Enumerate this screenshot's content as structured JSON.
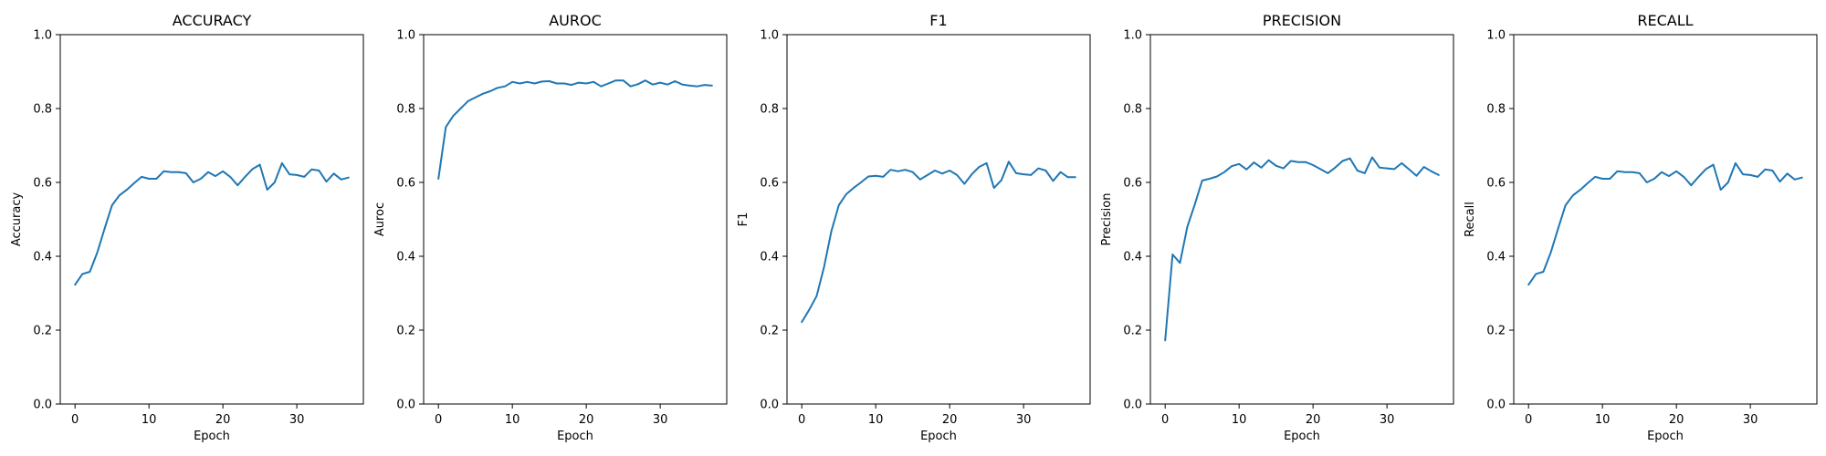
{
  "chart_data": [
    {
      "type": "line",
      "title": "ACCURACY",
      "xlabel": "Epoch",
      "ylabel": "Accuracy",
      "xlim": [
        -2,
        39
      ],
      "ylim": [
        0,
        1
      ],
      "xticks": [
        0,
        10,
        20,
        30
      ],
      "yticks": [
        0.0,
        0.2,
        0.4,
        0.6,
        0.8,
        1.0
      ],
      "x": [
        0,
        1,
        2,
        3,
        4,
        5,
        6,
        7,
        8,
        9,
        10,
        11,
        12,
        13,
        14,
        15,
        16,
        17,
        18,
        19,
        20,
        21,
        22,
        23,
        24,
        25,
        26,
        27,
        28,
        29,
        30,
        31,
        32,
        33,
        34,
        35,
        36,
        37
      ],
      "series": [
        {
          "values": [
            0.323,
            0.352,
            0.358,
            0.41,
            0.475,
            0.538,
            0.565,
            0.58,
            0.598,
            0.615,
            0.61,
            0.61,
            0.63,
            0.628,
            0.628,
            0.625,
            0.6,
            0.61,
            0.628,
            0.617,
            0.63,
            0.615,
            0.592,
            0.615,
            0.636,
            0.648,
            0.58,
            0.6,
            0.652,
            0.622,
            0.62,
            0.615,
            0.635,
            0.632,
            0.602,
            0.624,
            0.608,
            0.613
          ]
        }
      ],
      "color": "#1f77b4",
      "grid": false
    },
    {
      "type": "line",
      "title": "AUROC",
      "xlabel": "Epoch",
      "ylabel": "Auroc",
      "xlim": [
        -2,
        39
      ],
      "ylim": [
        0,
        1
      ],
      "xticks": [
        0,
        10,
        20,
        30
      ],
      "yticks": [
        0.0,
        0.2,
        0.4,
        0.6,
        0.8,
        1.0
      ],
      "x": [
        0,
        1,
        2,
        3,
        4,
        5,
        6,
        7,
        8,
        9,
        10,
        11,
        12,
        13,
        14,
        15,
        16,
        17,
        18,
        19,
        20,
        21,
        22,
        23,
        24,
        25,
        26,
        27,
        28,
        29,
        30,
        31,
        32,
        33,
        34,
        35,
        36,
        37
      ],
      "series": [
        {
          "values": [
            0.61,
            0.75,
            0.78,
            0.8,
            0.82,
            0.83,
            0.84,
            0.847,
            0.856,
            0.86,
            0.872,
            0.868,
            0.872,
            0.868,
            0.873,
            0.874,
            0.868,
            0.868,
            0.864,
            0.87,
            0.868,
            0.872,
            0.86,
            0.868,
            0.876,
            0.876,
            0.86,
            0.866,
            0.876,
            0.865,
            0.87,
            0.865,
            0.874,
            0.865,
            0.862,
            0.86,
            0.864,
            0.862
          ]
        }
      ],
      "color": "#1f77b4",
      "grid": false
    },
    {
      "type": "line",
      "title": "F1",
      "xlabel": "Epoch",
      "ylabel": "F1",
      "xlim": [
        -2,
        39
      ],
      "ylim": [
        0,
        1
      ],
      "xticks": [
        0,
        10,
        20,
        30
      ],
      "yticks": [
        0.0,
        0.2,
        0.4,
        0.6,
        0.8,
        1.0
      ],
      "x": [
        0,
        1,
        2,
        3,
        4,
        5,
        6,
        7,
        8,
        9,
        10,
        11,
        12,
        13,
        14,
        15,
        16,
        17,
        18,
        19,
        20,
        21,
        22,
        23,
        24,
        25,
        26,
        27,
        28,
        29,
        30,
        31,
        32,
        33,
        34,
        35,
        36,
        37
      ],
      "series": [
        {
          "values": [
            0.222,
            0.255,
            0.292,
            0.37,
            0.468,
            0.538,
            0.568,
            0.585,
            0.6,
            0.616,
            0.618,
            0.615,
            0.634,
            0.63,
            0.634,
            0.628,
            0.608,
            0.62,
            0.632,
            0.624,
            0.632,
            0.62,
            0.596,
            0.622,
            0.642,
            0.652,
            0.585,
            0.606,
            0.656,
            0.625,
            0.622,
            0.62,
            0.638,
            0.632,
            0.604,
            0.628,
            0.614,
            0.614
          ]
        }
      ],
      "color": "#1f77b4",
      "grid": false
    },
    {
      "type": "line",
      "title": "PRECISION",
      "xlabel": "Epoch",
      "ylabel": "Precision",
      "xlim": [
        -2,
        39
      ],
      "ylim": [
        0,
        1
      ],
      "xticks": [
        0,
        10,
        20,
        30
      ],
      "yticks": [
        0.0,
        0.2,
        0.4,
        0.6,
        0.8,
        1.0
      ],
      "x": [
        0,
        1,
        2,
        3,
        4,
        5,
        6,
        7,
        8,
        9,
        10,
        11,
        12,
        13,
        14,
        15,
        16,
        17,
        18,
        19,
        20,
        21,
        22,
        23,
        24,
        25,
        26,
        27,
        28,
        29,
        30,
        31,
        32,
        33,
        34,
        35,
        36,
        37
      ],
      "series": [
        {
          "values": [
            0.172,
            0.405,
            0.382,
            0.48,
            0.54,
            0.605,
            0.61,
            0.616,
            0.628,
            0.644,
            0.65,
            0.635,
            0.654,
            0.64,
            0.66,
            0.645,
            0.638,
            0.658,
            0.655,
            0.655,
            0.647,
            0.636,
            0.625,
            0.64,
            0.658,
            0.665,
            0.632,
            0.625,
            0.668,
            0.64,
            0.638,
            0.636,
            0.652,
            0.635,
            0.618,
            0.642,
            0.63,
            0.62
          ]
        }
      ],
      "color": "#1f77b4",
      "grid": false
    },
    {
      "type": "line",
      "title": "RECALL",
      "xlabel": "Epoch",
      "ylabel": "Recall",
      "xlim": [
        -2,
        39
      ],
      "ylim": [
        0,
        1
      ],
      "xticks": [
        0,
        10,
        20,
        30
      ],
      "yticks": [
        0.0,
        0.2,
        0.4,
        0.6,
        0.8,
        1.0
      ],
      "x": [
        0,
        1,
        2,
        3,
        4,
        5,
        6,
        7,
        8,
        9,
        10,
        11,
        12,
        13,
        14,
        15,
        16,
        17,
        18,
        19,
        20,
        21,
        22,
        23,
        24,
        25,
        26,
        27,
        28,
        29,
        30,
        31,
        32,
        33,
        34,
        35,
        36,
        37
      ],
      "series": [
        {
          "values": [
            0.323,
            0.352,
            0.358,
            0.41,
            0.475,
            0.538,
            0.565,
            0.58,
            0.598,
            0.615,
            0.61,
            0.61,
            0.63,
            0.628,
            0.628,
            0.625,
            0.6,
            0.61,
            0.628,
            0.617,
            0.63,
            0.615,
            0.592,
            0.615,
            0.636,
            0.648,
            0.58,
            0.6,
            0.652,
            0.622,
            0.62,
            0.615,
            0.635,
            0.632,
            0.602,
            0.624,
            0.608,
            0.613
          ]
        }
      ],
      "color": "#1f77b4",
      "grid": false
    }
  ]
}
